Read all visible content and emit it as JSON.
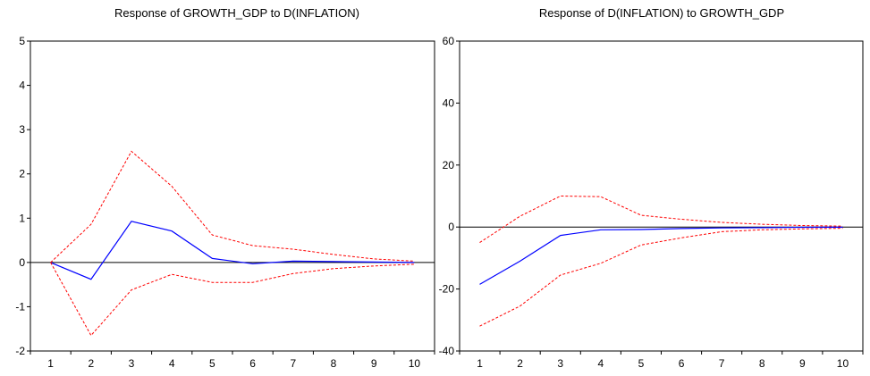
{
  "chart_data": [
    {
      "type": "line",
      "title": "Response of GROWTH_GDP to D(INFLATION)",
      "xlabel": "",
      "ylabel": "",
      "x": [
        1,
        2,
        3,
        4,
        5,
        6,
        7,
        8,
        9,
        10
      ],
      "xlim": [
        0.5,
        10.5
      ],
      "ylim": [
        -2,
        5
      ],
      "yticks": [
        -2,
        -1,
        0,
        1,
        2,
        3,
        4,
        5
      ],
      "grid": false,
      "zero_line": true,
      "series": [
        {
          "values": [
            0,
            -0.38,
            0.93,
            0.71,
            0.09,
            -0.03,
            0.03,
            0.02,
            0.01,
            0.0
          ],
          "color": "#0000ff",
          "style": "solid"
        },
        {
          "values": [
            0,
            0.86,
            2.51,
            1.72,
            0.62,
            0.38,
            0.3,
            0.18,
            0.08,
            0.03
          ],
          "color": "#ff0000",
          "style": "dashed"
        },
        {
          "values": [
            0,
            -1.65,
            -0.62,
            -0.27,
            -0.45,
            -0.45,
            -0.25,
            -0.14,
            -0.08,
            -0.04
          ],
          "color": "#ff0000",
          "style": "dashed"
        }
      ]
    },
    {
      "type": "line",
      "title": "Response of D(INFLATION) to GROWTH_GDP",
      "xlabel": "",
      "ylabel": "",
      "x": [
        1,
        2,
        3,
        4,
        5,
        6,
        7,
        8,
        9,
        10
      ],
      "xlim": [
        0.5,
        10.5
      ],
      "ylim": [
        -40,
        60
      ],
      "yticks": [
        -40,
        -20,
        0,
        20,
        40,
        60
      ],
      "grid": false,
      "zero_line": true,
      "series": [
        {
          "values": [
            -18.5,
            -11.0,
            -2.7,
            -0.9,
            -0.8,
            -0.5,
            -0.3,
            -0.2,
            -0.1,
            -0.05
          ],
          "color": "#0000ff",
          "style": "solid"
        },
        {
          "values": [
            -5.0,
            3.5,
            10.0,
            9.8,
            3.8,
            2.5,
            1.5,
            0.9,
            0.5,
            0.3
          ],
          "color": "#ff0000",
          "style": "dashed"
        },
        {
          "values": [
            -32.0,
            -25.5,
            -15.5,
            -11.7,
            -5.8,
            -3.5,
            -1.5,
            -0.9,
            -0.6,
            -0.4
          ],
          "color": "#ff0000",
          "style": "dashed"
        }
      ]
    }
  ]
}
